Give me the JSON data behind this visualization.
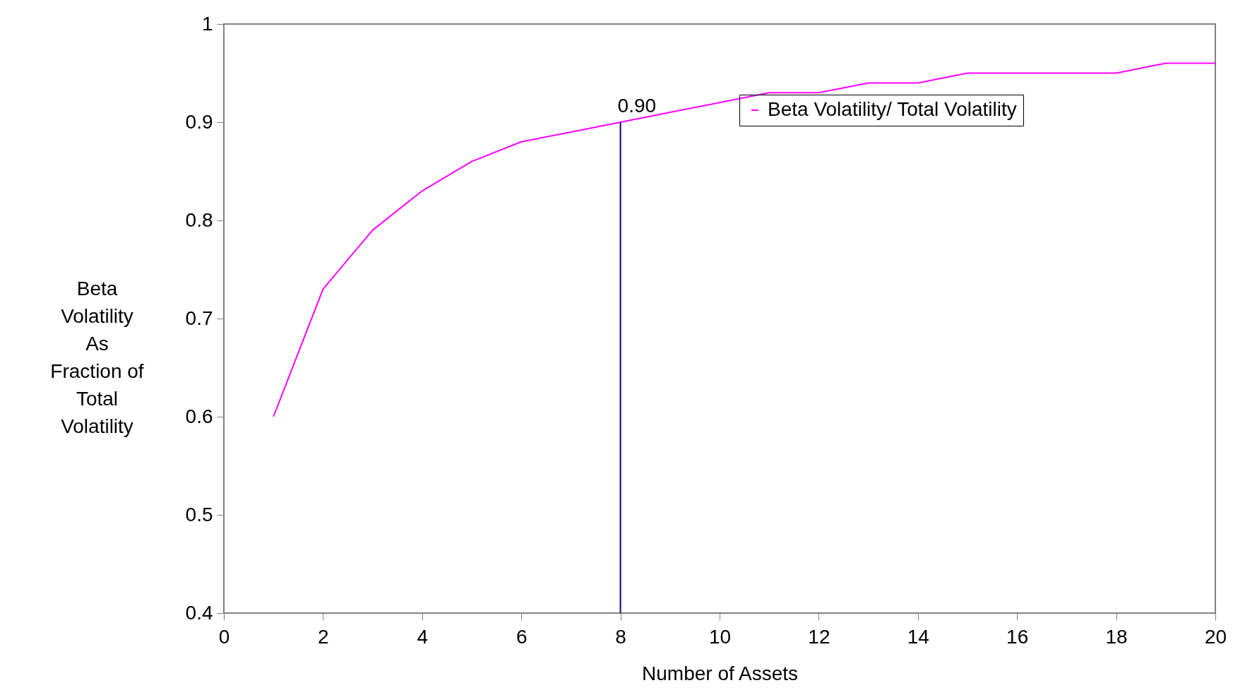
{
  "chart_data": {
    "type": "line",
    "xlabel": "Number of Assets",
    "ylabel": "Beta\nVolatility\nAs\nFraction of\nTotal\nVolatility",
    "x": [
      1,
      2,
      3,
      4,
      5,
      6,
      7,
      8,
      9,
      10,
      11,
      12,
      13,
      14,
      15,
      16,
      17,
      18,
      19,
      20
    ],
    "series": [
      {
        "name": "Beta Volatility/ Total Volatility",
        "color": "#ff00ff",
        "values": [
          0.6,
          0.73,
          0.79,
          0.83,
          0.86,
          0.88,
          0.89,
          0.9,
          0.91,
          0.92,
          0.93,
          0.93,
          0.94,
          0.94,
          0.95,
          0.95,
          0.95,
          0.95,
          0.96,
          0.96
        ]
      }
    ],
    "xlim": [
      0,
      20
    ],
    "xticks": [
      0,
      2,
      4,
      6,
      8,
      10,
      12,
      14,
      16,
      18,
      20
    ],
    "ylim": [
      0.4,
      1
    ],
    "yticks": [
      0.4,
      0.5,
      0.6,
      0.7,
      0.8,
      0.9,
      1
    ],
    "ref_lines": [
      {
        "axis": "x",
        "value": 8,
        "color": "#000080"
      }
    ],
    "annotations": [
      {
        "text": "0.90",
        "x": 8,
        "y": 0.9
      }
    ],
    "grid": false,
    "legend": "top right",
    "marker": "none"
  }
}
